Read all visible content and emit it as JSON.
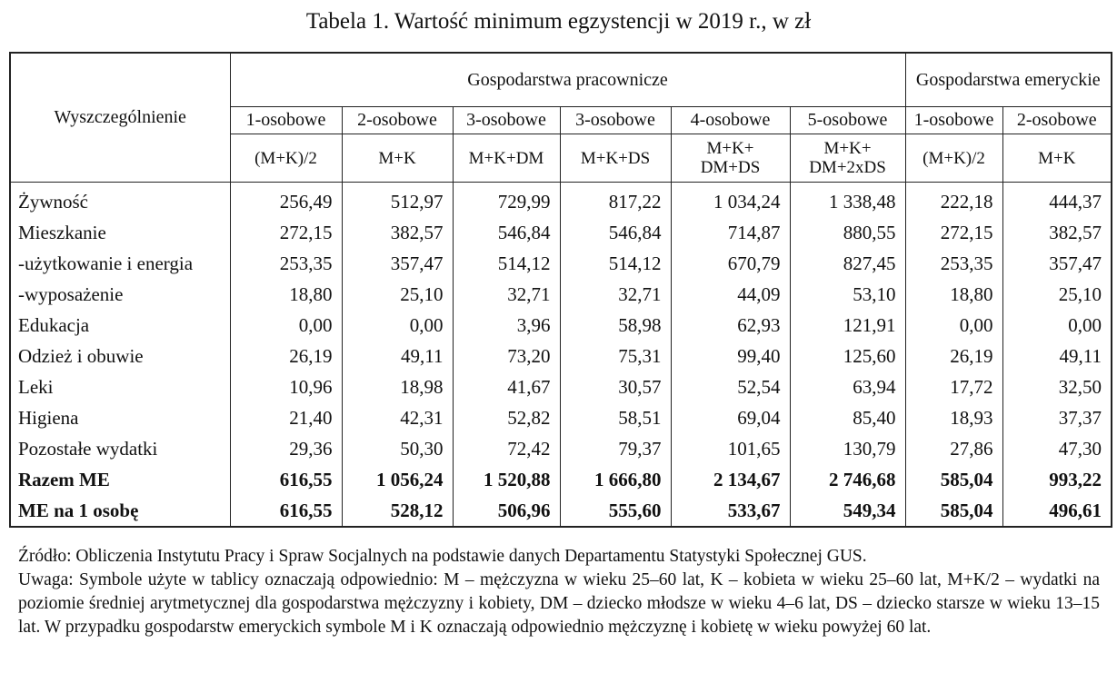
{
  "title": "Tabela 1. Wartość minimum egzystencji w 2019 r., w zł",
  "table": {
    "stub": "Wyszczególnienie",
    "groups": [
      "Gospodarstwa pracownicze",
      "Gospodarstwa emeryckie"
    ],
    "sizes": [
      "1-osobowe",
      "2-osobowe",
      "3-osobowe",
      "3-osobowe",
      "4-osobowe",
      "5-osobowe",
      "1-osobowe",
      "2-osobowe"
    ],
    "compositions": [
      "(M+K)/2",
      "M+K",
      "M+K+DM",
      "M+K+DS",
      "M+K+\nDM+DS",
      "M+K+\nDM+2xDS",
      "(M+K)/2",
      "M+K"
    ],
    "rows": [
      {
        "label": "Żywność",
        "values": [
          "256,49",
          "512,97",
          "729,99",
          "817,22",
          "1 034,24",
          "1 338,48",
          "222,18",
          "444,37"
        ]
      },
      {
        "label": "Mieszkanie",
        "values": [
          "272,15",
          "382,57",
          "546,84",
          "546,84",
          "714,87",
          "880,55",
          "272,15",
          "382,57"
        ]
      },
      {
        "label": "-użytkowanie i energia",
        "values": [
          "253,35",
          "357,47",
          "514,12",
          "514,12",
          "670,79",
          "827,45",
          "253,35",
          "357,47"
        ]
      },
      {
        "label": "-wyposażenie",
        "values": [
          "18,80",
          "25,10",
          "32,71",
          "32,71",
          "44,09",
          "53,10",
          "18,80",
          "25,10"
        ]
      },
      {
        "label": "Edukacja",
        "values": [
          "0,00",
          "0,00",
          "3,96",
          "58,98",
          "62,93",
          "121,91",
          "0,00",
          "0,00"
        ]
      },
      {
        "label": "Odzież i obuwie",
        "values": [
          "26,19",
          "49,11",
          "73,20",
          "75,31",
          "99,40",
          "125,60",
          "26,19",
          "49,11"
        ]
      },
      {
        "label": "Leki",
        "values": [
          "10,96",
          "18,98",
          "41,67",
          "30,57",
          "52,54",
          "63,94",
          "17,72",
          "32,50"
        ]
      },
      {
        "label": "Higiena",
        "values": [
          "21,40",
          "42,31",
          "52,82",
          "58,51",
          "69,04",
          "85,40",
          "18,93",
          "37,37"
        ]
      },
      {
        "label": "Pozostałe wydatki",
        "values": [
          "29,36",
          "50,30",
          "72,42",
          "79,37",
          "101,65",
          "130,79",
          "27,86",
          "47,30"
        ]
      },
      {
        "label": "Razem ME",
        "bold": true,
        "values": [
          "616,55",
          "1 056,24",
          "1 520,88",
          "1 666,80",
          "2 134,67",
          "2 746,68",
          "585,04",
          "993,22"
        ]
      },
      {
        "label": "ME na 1 osobę",
        "bold": true,
        "values": [
          "616,55",
          "528,12",
          "506,96",
          "555,60",
          "533,67",
          "549,34",
          "585,04",
          "496,61"
        ]
      }
    ]
  },
  "footnotes": {
    "source": "Źródło: Obliczenia Instytutu Pracy i Spraw Socjalnych na podstawie danych Departamentu Statystyki Społecznej GUS.",
    "note": "Uwaga: Symbole użyte w tablicy oznaczają odpowiednio: M – mężczyzna w wieku 25–60 lat, K – kobieta w wieku 25–60 lat, M+K/2 – wydatki na poziomie średniej arytmetycznej dla gospodarstwa mężczyzny i kobiety, DM – dziecko młodsze w wieku 4–6 lat, DS – dziecko starsze w wieku 13–15 lat. W przypadku gospodarstw emeryckich symbole M i K oznaczają odpowiednio mężczyznę i kobietę w wieku powyżej 60 lat."
  }
}
